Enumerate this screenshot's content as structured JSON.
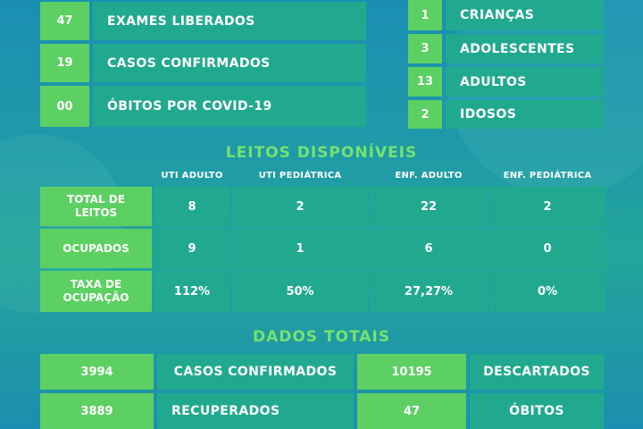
{
  "top_left": [
    {
      "value": "47",
      "label": "EXAMES LIBERADOS"
    },
    {
      "value": "19",
      "label": "CASOS CONFIRMADOS"
    },
    {
      "value": "00",
      "label": "ÓBITOS POR COVID-19"
    }
  ],
  "age_groups": [
    {
      "value": "1",
      "label": "CRIANÇAS"
    },
    {
      "value": "3",
      "label": "ADOLESCENTES"
    },
    {
      "value": "13",
      "label": "ADULTOS"
    },
    {
      "value": "2",
      "label": "IDOSOS"
    }
  ],
  "leitos": {
    "title": "LEITOS DISPONÍVEIS",
    "columns": [
      "UTI ADULTO",
      "UTI PEDIÁTRICA",
      "ENF. ADULTO",
      "ENF. PEDIÁTRICA"
    ],
    "rows": [
      {
        "label": "TOTAL DE LEITOS",
        "values": [
          "8",
          "2",
          "22",
          "2"
        ]
      },
      {
        "label": "OCUPADOS",
        "values": [
          "9",
          "1",
          "6",
          "0"
        ]
      },
      {
        "label": "TAXA DE OCUPAÇÃO",
        "values": [
          "112%",
          "50%",
          "27,27%",
          "0%"
        ]
      }
    ]
  },
  "totais": {
    "title": "DADOS TOTAIS",
    "rows": [
      [
        {
          "value": "3994",
          "label": "CASOS CONFIRMADOS"
        },
        {
          "value": "10195",
          "label": "DESCARTADOS"
        }
      ],
      [
        {
          "value": "3889",
          "label": "RECUPERADOS"
        },
        {
          "value": "47",
          "label": "ÓBITOS"
        }
      ]
    ]
  },
  "colors": {
    "light_green": "#5cd062",
    "teal": "#21a98f",
    "title_green": "#74e26e"
  }
}
